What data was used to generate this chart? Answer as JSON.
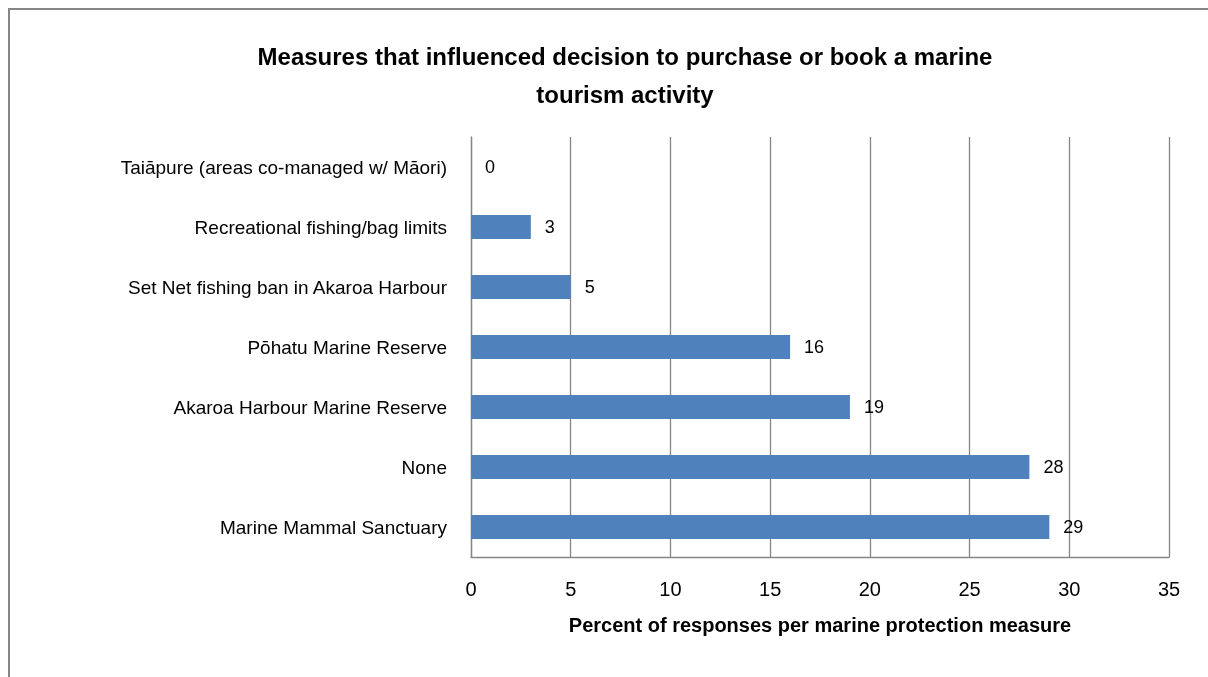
{
  "chart_data": {
    "type": "bar",
    "orientation": "horizontal",
    "title": "Measures that influenced decision to purchase or book a marine tourism activity",
    "xlabel": "Percent of responses per marine protection measure",
    "categories": [
      "Taiāpure (areas co-managed w/ Māori)",
      "Recreational fishing/bag limits",
      "Set Net fishing ban in Akaroa Harbour",
      "Pōhatu Marine Reserve",
      "Akaroa Harbour Marine Reserve",
      "None",
      "Marine Mammal Sanctuary"
    ],
    "values": [
      0,
      3,
      5,
      16,
      19,
      28,
      29
    ],
    "color": "#4f81bd",
    "xlim": [
      0,
      35
    ],
    "xticks": [
      0,
      5,
      10,
      15,
      20,
      25,
      30,
      35
    ],
    "grid": "x",
    "data_labels": true
  }
}
